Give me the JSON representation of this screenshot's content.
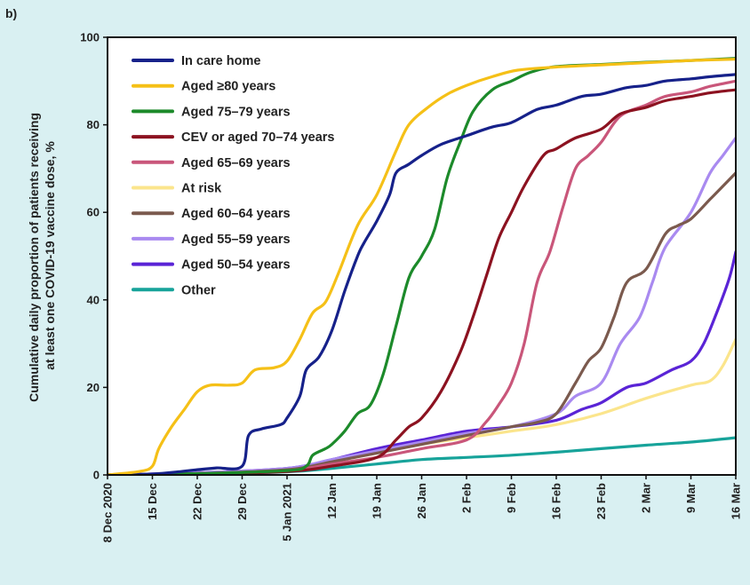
{
  "panel_label": "b)",
  "chart_data": {
    "type": "line",
    "title": "",
    "xlabel": "",
    "ylabel": "Cumulative daily proportion of patients receiving at least one COVID-19 vaccine dose, %",
    "ylabel_lines": [
      "Cumulative daily proportion of patients receiving",
      "at least one COVID-19 vaccine dose, %"
    ],
    "xlim": [
      "2020-12-08",
      "2021-03-16"
    ],
    "ylim": [
      0,
      100
    ],
    "yticks": [
      0,
      20,
      40,
      60,
      80,
      100
    ],
    "xticks": [
      {
        "date": "2020-12-08",
        "label": "8 Dec 2020"
      },
      {
        "date": "2020-12-15",
        "label": "15 Dec"
      },
      {
        "date": "2020-12-22",
        "label": "22 Dec"
      },
      {
        "date": "2020-12-29",
        "label": "29 Dec"
      },
      {
        "date": "2021-01-05",
        "label": "5 Jan 2021"
      },
      {
        "date": "2021-01-12",
        "label": "12 Jan"
      },
      {
        "date": "2021-01-19",
        "label": "19 Jan"
      },
      {
        "date": "2021-01-26",
        "label": "26 Jan"
      },
      {
        "date": "2021-02-02",
        "label": "2 Feb"
      },
      {
        "date": "2021-02-09",
        "label": "9 Feb"
      },
      {
        "date": "2021-02-16",
        "label": "16 Feb"
      },
      {
        "date": "2021-02-23",
        "label": "23 Feb"
      },
      {
        "date": "2021-03-02",
        "label": "2 Mar"
      },
      {
        "date": "2021-03-09",
        "label": "9 Mar"
      },
      {
        "date": "2021-03-16",
        "label": "16 Mar"
      }
    ],
    "grid": false,
    "legend_position": "top-left",
    "series": [
      {
        "name": "In care home",
        "color": "#16218a",
        "points": [
          [
            "2020-12-08",
            0
          ],
          [
            "2020-12-15",
            0.2
          ],
          [
            "2020-12-19",
            0.7
          ],
          [
            "2020-12-22",
            1.2
          ],
          [
            "2020-12-25",
            1.6
          ],
          [
            "2020-12-29",
            2
          ],
          [
            "2020-12-30",
            9
          ],
          [
            "2021-01-01",
            10.5
          ],
          [
            "2021-01-04",
            11.5
          ],
          [
            "2021-01-05",
            13
          ],
          [
            "2021-01-07",
            18
          ],
          [
            "2021-01-08",
            24
          ],
          [
            "2021-01-10",
            27
          ],
          [
            "2021-01-12",
            33
          ],
          [
            "2021-01-14",
            42
          ],
          [
            "2021-01-16",
            50
          ],
          [
            "2021-01-17",
            53
          ],
          [
            "2021-01-19",
            58
          ],
          [
            "2021-01-21",
            64
          ],
          [
            "2021-01-22",
            69
          ],
          [
            "2021-01-24",
            71
          ],
          [
            "2021-01-26",
            73
          ],
          [
            "2021-01-29",
            75.5
          ],
          [
            "2021-02-02",
            77.5
          ],
          [
            "2021-02-06",
            79.5
          ],
          [
            "2021-02-09",
            80.5
          ],
          [
            "2021-02-13",
            83.5
          ],
          [
            "2021-02-16",
            84.5
          ],
          [
            "2021-02-20",
            86.5
          ],
          [
            "2021-02-23",
            87
          ],
          [
            "2021-02-27",
            88.5
          ],
          [
            "2021-03-02",
            89
          ],
          [
            "2021-03-05",
            90
          ],
          [
            "2021-03-09",
            90.5
          ],
          [
            "2021-03-12",
            91
          ],
          [
            "2021-03-16",
            91.5
          ]
        ]
      },
      {
        "name": "Aged ≥80 years",
        "color": "#f5c017",
        "points": [
          [
            "2020-12-08",
            0
          ],
          [
            "2020-12-13",
            0.8
          ],
          [
            "2020-12-15",
            2
          ],
          [
            "2020-12-16",
            6
          ],
          [
            "2020-12-18",
            11
          ],
          [
            "2020-12-20",
            15
          ],
          [
            "2020-12-22",
            19
          ],
          [
            "2020-12-24",
            20.5
          ],
          [
            "2020-12-27",
            20.5
          ],
          [
            "2020-12-29",
            21
          ],
          [
            "2020-12-31",
            24
          ],
          [
            "2021-01-03",
            24.5
          ],
          [
            "2021-01-05",
            26
          ],
          [
            "2021-01-07",
            31
          ],
          [
            "2021-01-09",
            37
          ],
          [
            "2021-01-11",
            39.5
          ],
          [
            "2021-01-13",
            46
          ],
          [
            "2021-01-16",
            57
          ],
          [
            "2021-01-19",
            64
          ],
          [
            "2021-01-22",
            74
          ],
          [
            "2021-01-24",
            80
          ],
          [
            "2021-01-27",
            84
          ],
          [
            "2021-01-30",
            87
          ],
          [
            "2021-02-02",
            89
          ],
          [
            "2021-02-06",
            91
          ],
          [
            "2021-02-10",
            92.5
          ],
          [
            "2021-02-16",
            93.2
          ],
          [
            "2021-02-23",
            93.7
          ],
          [
            "2021-03-02",
            94.2
          ],
          [
            "2021-03-09",
            94.7
          ],
          [
            "2021-03-16",
            95
          ]
        ]
      },
      {
        "name": "Aged 75–79 years",
        "color": "#1c8a2a",
        "points": [
          [
            "2020-12-08",
            0
          ],
          [
            "2020-12-22",
            0.3
          ],
          [
            "2021-01-05",
            1
          ],
          [
            "2021-01-08",
            2
          ],
          [
            "2021-01-09",
            4.5
          ],
          [
            "2021-01-11",
            6
          ],
          [
            "2021-01-12",
            7
          ],
          [
            "2021-01-14",
            10
          ],
          [
            "2021-01-16",
            14
          ],
          [
            "2021-01-18",
            16
          ],
          [
            "2021-01-20",
            23
          ],
          [
            "2021-01-22",
            34
          ],
          [
            "2021-01-24",
            45
          ],
          [
            "2021-01-26",
            50
          ],
          [
            "2021-01-28",
            56
          ],
          [
            "2021-01-30",
            68
          ],
          [
            "2021-02-01",
            76
          ],
          [
            "2021-02-03",
            83
          ],
          [
            "2021-02-06",
            88
          ],
          [
            "2021-02-09",
            90
          ],
          [
            "2021-02-12",
            92
          ],
          [
            "2021-02-16",
            93.3
          ],
          [
            "2021-02-23",
            93.8
          ],
          [
            "2021-03-02",
            94.3
          ],
          [
            "2021-03-09",
            94.7
          ],
          [
            "2021-03-16",
            95.2
          ]
        ]
      },
      {
        "name": "CEV or aged 70–74 years",
        "color": "#8c1220",
        "points": [
          [
            "2020-12-08",
            0
          ],
          [
            "2020-12-22",
            0.2
          ],
          [
            "2021-01-05",
            0.8
          ],
          [
            "2021-01-12",
            2
          ],
          [
            "2021-01-19",
            4
          ],
          [
            "2021-01-22",
            8
          ],
          [
            "2021-01-24",
            11
          ],
          [
            "2021-01-26",
            13
          ],
          [
            "2021-01-29",
            19
          ],
          [
            "2021-02-01",
            28
          ],
          [
            "2021-02-03",
            36
          ],
          [
            "2021-02-05",
            45
          ],
          [
            "2021-02-07",
            54
          ],
          [
            "2021-02-09",
            60
          ],
          [
            "2021-02-11",
            66
          ],
          [
            "2021-02-14",
            73
          ],
          [
            "2021-02-16",
            74.5
          ],
          [
            "2021-02-19",
            77
          ],
          [
            "2021-02-23",
            79
          ],
          [
            "2021-02-26",
            82.5
          ],
          [
            "2021-03-02",
            84
          ],
          [
            "2021-03-05",
            85.5
          ],
          [
            "2021-03-09",
            86.5
          ],
          [
            "2021-03-12",
            87.3
          ],
          [
            "2021-03-16",
            88
          ]
        ]
      },
      {
        "name": "Aged 65–69 years",
        "color": "#c9567a",
        "points": [
          [
            "2020-12-08",
            0
          ],
          [
            "2020-12-22",
            0.3
          ],
          [
            "2021-01-05",
            1
          ],
          [
            "2021-01-12",
            2.5
          ],
          [
            "2021-01-19",
            4
          ],
          [
            "2021-01-26",
            6
          ],
          [
            "2021-02-02",
            8
          ],
          [
            "2021-02-05",
            12
          ],
          [
            "2021-02-07",
            16
          ],
          [
            "2021-02-09",
            21
          ],
          [
            "2021-02-11",
            30
          ],
          [
            "2021-02-13",
            44
          ],
          [
            "2021-02-15",
            51
          ],
          [
            "2021-02-17",
            61
          ],
          [
            "2021-02-19",
            70
          ],
          [
            "2021-02-21",
            73
          ],
          [
            "2021-02-23",
            76
          ],
          [
            "2021-02-26",
            82
          ],
          [
            "2021-03-02",
            84.5
          ],
          [
            "2021-03-05",
            86.5
          ],
          [
            "2021-03-09",
            87.5
          ],
          [
            "2021-03-12",
            88.8
          ],
          [
            "2021-03-16",
            90
          ]
        ]
      },
      {
        "name": "At risk",
        "color": "#fbe58c",
        "points": [
          [
            "2020-12-08",
            0
          ],
          [
            "2020-12-22",
            0.4
          ],
          [
            "2021-01-05",
            1.3
          ],
          [
            "2021-01-12",
            3
          ],
          [
            "2021-01-19",
            5
          ],
          [
            "2021-01-26",
            7
          ],
          [
            "2021-02-02",
            8.5
          ],
          [
            "2021-02-09",
            10
          ],
          [
            "2021-02-16",
            11.5
          ],
          [
            "2021-02-23",
            14
          ],
          [
            "2021-03-02",
            17.5
          ],
          [
            "2021-03-09",
            20.5
          ],
          [
            "2021-03-12",
            21.5
          ],
          [
            "2021-03-14",
            25
          ],
          [
            "2021-03-16",
            31
          ]
        ]
      },
      {
        "name": "Aged 60–64 years",
        "color": "#7b5a4e",
        "points": [
          [
            "2020-12-08",
            0
          ],
          [
            "2020-12-22",
            0.3
          ],
          [
            "2021-01-05",
            1.2
          ],
          [
            "2021-01-12",
            3
          ],
          [
            "2021-01-19",
            5
          ],
          [
            "2021-01-26",
            7
          ],
          [
            "2021-02-02",
            9
          ],
          [
            "2021-02-09",
            11
          ],
          [
            "2021-02-13",
            12
          ],
          [
            "2021-02-16",
            14
          ],
          [
            "2021-02-19",
            21
          ],
          [
            "2021-02-21",
            26
          ],
          [
            "2021-02-23",
            29
          ],
          [
            "2021-02-25",
            36
          ],
          [
            "2021-02-27",
            44
          ],
          [
            "2021-03-02",
            47
          ],
          [
            "2021-03-05",
            55
          ],
          [
            "2021-03-07",
            57
          ],
          [
            "2021-03-09",
            58.5
          ],
          [
            "2021-03-12",
            63
          ],
          [
            "2021-03-14",
            66
          ],
          [
            "2021-03-16",
            69
          ]
        ]
      },
      {
        "name": "Aged 55–59 years",
        "color": "#a98af0",
        "points": [
          [
            "2020-12-08",
            0
          ],
          [
            "2020-12-22",
            0.5
          ],
          [
            "2021-01-05",
            1.5
          ],
          [
            "2021-01-12",
            3.5
          ],
          [
            "2021-01-19",
            5.5
          ],
          [
            "2021-01-26",
            7.5
          ],
          [
            "2021-02-02",
            9.5
          ],
          [
            "2021-02-09",
            11
          ],
          [
            "2021-02-16",
            14
          ],
          [
            "2021-02-19",
            18
          ],
          [
            "2021-02-23",
            21
          ],
          [
            "2021-02-26",
            30
          ],
          [
            "2021-03-01",
            36
          ],
          [
            "2021-03-03",
            44
          ],
          [
            "2021-03-05",
            52
          ],
          [
            "2021-03-09",
            60
          ],
          [
            "2021-03-12",
            69
          ],
          [
            "2021-03-14",
            73
          ],
          [
            "2021-03-16",
            77
          ]
        ]
      },
      {
        "name": "Aged 50–54 years",
        "color": "#5a24d6",
        "points": [
          [
            "2020-12-08",
            0
          ],
          [
            "2020-12-22",
            0.5
          ],
          [
            "2021-01-05",
            1.5
          ],
          [
            "2021-01-12",
            3.5
          ],
          [
            "2021-01-19",
            6
          ],
          [
            "2021-01-26",
            8
          ],
          [
            "2021-02-02",
            10
          ],
          [
            "2021-02-09",
            11
          ],
          [
            "2021-02-16",
            12.5
          ],
          [
            "2021-02-20",
            15
          ],
          [
            "2021-02-23",
            16.5
          ],
          [
            "2021-02-27",
            20
          ],
          [
            "2021-03-02",
            21
          ],
          [
            "2021-03-06",
            24
          ],
          [
            "2021-03-09",
            26
          ],
          [
            "2021-03-11",
            30
          ],
          [
            "2021-03-13",
            37
          ],
          [
            "2021-03-15",
            45
          ],
          [
            "2021-03-16",
            51
          ]
        ]
      },
      {
        "name": "Other",
        "color": "#17a39a",
        "points": [
          [
            "2020-12-08",
            0
          ],
          [
            "2020-12-22",
            0.2
          ],
          [
            "2021-01-05",
            0.7
          ],
          [
            "2021-01-12",
            1.5
          ],
          [
            "2021-01-19",
            2.5
          ],
          [
            "2021-01-26",
            3.5
          ],
          [
            "2021-02-02",
            4
          ],
          [
            "2021-02-09",
            4.5
          ],
          [
            "2021-02-16",
            5.2
          ],
          [
            "2021-02-23",
            6
          ],
          [
            "2021-03-02",
            6.8
          ],
          [
            "2021-03-09",
            7.5
          ],
          [
            "2021-03-16",
            8.5
          ]
        ]
      }
    ]
  }
}
